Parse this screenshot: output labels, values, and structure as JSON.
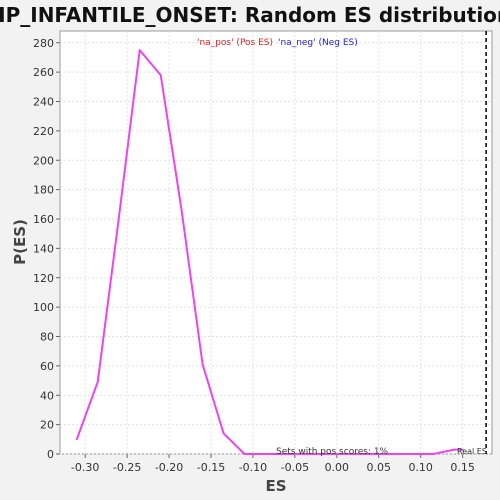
{
  "chart_data": {
    "type": "line",
    "title": "HP_INFANTILE_ONSET: Random ES distribution",
    "xlabel": "ES",
    "ylabel": "P(ES)",
    "xlim": [
      -0.33,
      0.185
    ],
    "ylim": [
      0,
      288
    ],
    "x_ticks": [
      -0.3,
      -0.25,
      -0.2,
      -0.15,
      -0.1,
      -0.05,
      0.0,
      0.05,
      0.1,
      0.15
    ],
    "x_tick_labels": [
      "-0.30",
      "-0.25",
      "-0.20",
      "-0.15",
      "-0.10",
      "-0.05",
      "0.00",
      "0.05",
      "0.10",
      "0.15"
    ],
    "y_ticks": [
      0,
      20,
      40,
      60,
      80,
      100,
      120,
      140,
      160,
      180,
      200,
      220,
      240,
      260,
      280
    ],
    "y_tick_labels": [
      "0",
      "20",
      "40",
      "60",
      "80",
      "100",
      "120",
      "140",
      "160",
      "180",
      "200",
      "220",
      "240",
      "260",
      "280"
    ],
    "grid": true,
    "legend_position": "top-center",
    "legend": [
      {
        "label": "'na_pos' (Pos ES)",
        "color": "#dd2222"
      },
      {
        "label": "'na_neg' (Neg ES)",
        "color": "#2222cc"
      }
    ],
    "series": [
      {
        "color": "#ee44ee",
        "x": [
          -0.31,
          -0.285,
          -0.26,
          -0.235,
          -0.21,
          -0.185,
          -0.16,
          -0.135,
          -0.11,
          -0.085,
          -0.06,
          -0.035,
          -0.01,
          0.015,
          0.04,
          0.065,
          0.09,
          0.115,
          0.14,
          0.15
        ],
        "y": [
          10,
          49,
          160,
          275,
          258,
          166,
          61,
          14,
          0,
          0,
          0,
          0,
          0,
          0,
          0,
          0,
          0,
          0,
          3,
          3
        ]
      }
    ],
    "real_es": {
      "x": 0.178,
      "label": "Real ES"
    },
    "annotation": "Sets with pos scores: 1%"
  }
}
